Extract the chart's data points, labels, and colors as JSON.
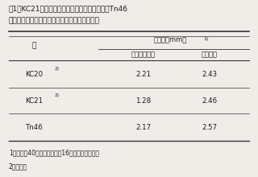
{
  "title_line1": "表1　KC21株由来のトランスポゾンタギング株Tn46",
  "title_line2": "が各カンキツ植物の葉に形成した病斑の大きさ",
  "col_header_main_text": "病斑径（mm）",
  "col_header_main_sup": "1)",
  "col1_header": "株",
  "col2_header": "オオタチバナ",
  "col3_header": "ネーブル",
  "rows": [
    {
      "label_text": "KC20",
      "label_sup": "2)",
      "v1": "2.21",
      "v2": "2.43"
    },
    {
      "label_text": "KC21",
      "label_sup": "2)",
      "v1": "1.28",
      "v2": "2.46"
    },
    {
      "label_text": "Tn46",
      "label_sup": "",
      "v1": "2.17",
      "v2": "2.57"
    }
  ],
  "footnote1": "1）接種後40日における病斑16個の直径の平均値",
  "footnote2": "2）野生株",
  "bg_color": "#f0ede8",
  "text_color": "#1a1a1a"
}
